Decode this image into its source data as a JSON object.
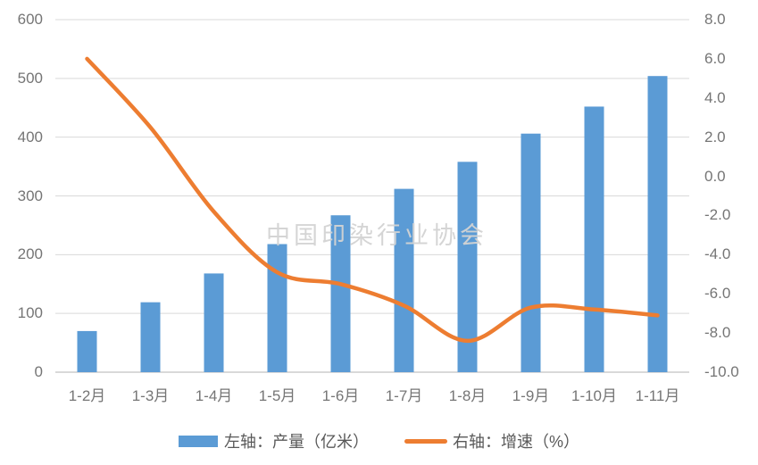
{
  "chart_data": {
    "type": "combo",
    "title": "",
    "categories": [
      "1-2月",
      "1-3月",
      "1-4月",
      "1-5月",
      "1-6月",
      "1-7月",
      "1-8月",
      "1-9月",
      "1-10月",
      "1-11月"
    ],
    "series": [
      {
        "name": "左轴：产量（亿米）",
        "type": "bar",
        "axis": "left",
        "values": [
          70,
          119,
          168,
          218,
          267,
          312,
          358,
          406,
          452,
          504
        ]
      },
      {
        "name": "右轴：增速（%）",
        "type": "line",
        "axis": "right",
        "values": [
          6.0,
          2.5,
          -1.8,
          -4.9,
          -5.5,
          -6.6,
          -8.4,
          -6.7,
          -6.8,
          -7.1
        ]
      }
    ],
    "left_axis": {
      "min": 0,
      "max": 600,
      "step": 100,
      "labels": [
        "0",
        "100",
        "200",
        "300",
        "400",
        "500",
        "600"
      ]
    },
    "right_axis": {
      "min": -10,
      "max": 8,
      "step": 2,
      "labels": [
        "-10.0",
        "-8.0",
        "-6.0",
        "-4.0",
        "-2.0",
        "0.0",
        "2.0",
        "4.0",
        "6.0",
        "8.0"
      ]
    },
    "grid": true,
    "legend_position": "bottom"
  },
  "watermark": "中国印染行业协会",
  "legend": {
    "production_label": "左轴：产量（亿米）",
    "growth_label": "右轴：增速（%）"
  },
  "colors": {
    "bar": "#5B9BD5",
    "line": "#ED7D31",
    "grid": "#D9D9D9",
    "axis_line": "#D9D9D9",
    "tick_text": "#757575",
    "legend_text": "#595959",
    "watermark": "#D3D3D3"
  }
}
